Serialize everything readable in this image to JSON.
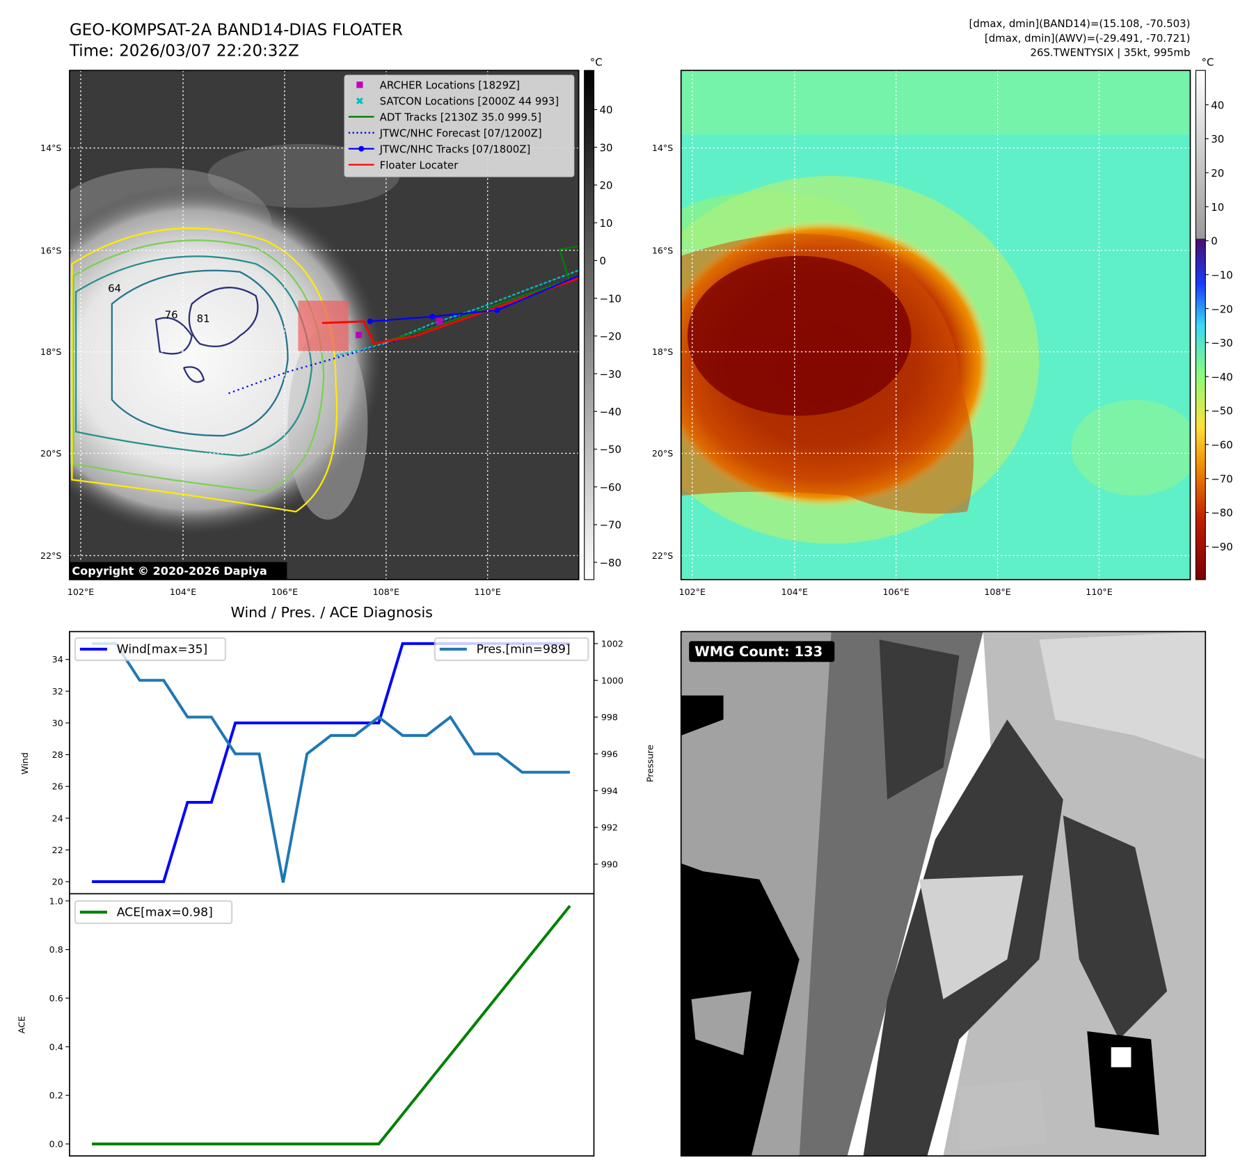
{
  "header": {
    "title": "GEO-KOMPSAT-2A BAND14-DIAS FLOATER",
    "time": "Time: 2026/03/07 22:20:32Z",
    "info_line1": "[dmax, dmin](BAND14)=(15.108, -70.503)",
    "info_line2": "[dmax, dmin](AWV)=(-29.491, -70.721)",
    "info_line3": "26S.TWENTYSIX | 35kt, 995mb"
  },
  "map": {
    "lat_labels": [
      "14°S",
      "16°S",
      "18°S",
      "20°S",
      "22°S"
    ],
    "lon_labels": [
      "102°E",
      "104°E",
      "106°E",
      "108°E",
      "110°E"
    ],
    "copyright": "Copyright © 2020-2026 Dapiya",
    "contour_labels": [
      "64",
      "81",
      "76"
    ],
    "legend": [
      {
        "label": "ARCHER Locations [1829Z]",
        "color": "#bf00bf",
        "marker": "square"
      },
      {
        "label": "SATCON Locations [2000Z 44 993]",
        "color": "#00bfbf",
        "marker": "x"
      },
      {
        "label": "ADT Tracks [2130Z 35.0 999.5]",
        "color": "#008000",
        "marker": "line"
      },
      {
        "label": "JTWC/NHC Forecast [07/1200Z]",
        "color": "#0000ff",
        "marker": "dotted"
      },
      {
        "label": "JTWC/NHC Tracks [07/1800Z]",
        "color": "#0000ff",
        "marker": "line-dot"
      },
      {
        "label": "Floater Locater",
        "color": "#ff0000",
        "marker": "line"
      }
    ],
    "colorbar_unit": "°C",
    "colorbar_ticks": [
      "40",
      "30",
      "20",
      "10",
      "0",
      "−10",
      "−20",
      "−30",
      "−40",
      "−50",
      "−60",
      "−70",
      "−80"
    ]
  },
  "awv": {
    "colorbar_unit": "°C",
    "colorbar_ticks": [
      "40",
      "30",
      "20",
      "10",
      "0",
      "−10",
      "−20",
      "−30",
      "−40",
      "−50",
      "−60",
      "−70",
      "−80",
      "−90"
    ]
  },
  "wmg": {
    "count_label": "WMG Count: 133"
  },
  "chart_data": [
    {
      "type": "line",
      "title": "Wind / Pres. / ACE Diagnosis",
      "ylabel": "Wind",
      "y2label": "Pressure",
      "ylim": [
        19.5,
        35.5
      ],
      "y2lim": [
        988.5,
        1002.5
      ],
      "yticks": [
        20,
        22,
        24,
        26,
        28,
        30,
        32,
        34
      ],
      "y2ticks": [
        990,
        992,
        994,
        996,
        998,
        1000,
        1002
      ],
      "series": [
        {
          "name": "Wind[max=35]",
          "axis": "left",
          "color": "#0000ff",
          "values": [
            20,
            20,
            20,
            20,
            25,
            25,
            30,
            30,
            30,
            30,
            30,
            30,
            30,
            35,
            35,
            35,
            35,
            35,
            35,
            35,
            35
          ]
        },
        {
          "name": "Pres.[min=989]",
          "axis": "right",
          "color": "#1f77b4",
          "values": [
            1002,
            1002,
            1000,
            1000,
            998,
            998,
            996,
            996,
            989,
            996,
            997,
            997,
            998,
            997,
            997,
            998,
            996,
            996,
            995,
            995,
            995
          ]
        }
      ]
    },
    {
      "type": "line",
      "ylabel": "ACE",
      "ylim": [
        -0.05,
        1.03
      ],
      "yticks": [
        "0.0",
        "0.2",
        "0.4",
        "0.6",
        "0.8",
        "1.0"
      ],
      "series": [
        {
          "name": "ACE[max=0.98]",
          "color": "#008000",
          "values": [
            0,
            0,
            0,
            0,
            0,
            0,
            0,
            0,
            0,
            0,
            0,
            0,
            0,
            0.1225,
            0.245,
            0.3675,
            0.49,
            0.6125,
            0.735,
            0.8575,
            0.98
          ]
        }
      ]
    }
  ]
}
